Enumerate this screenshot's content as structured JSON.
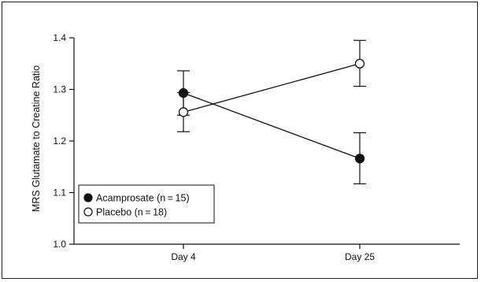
{
  "chart_data": {
    "type": "line",
    "ylabel": "MRS Glutamate to Creatine Ratio",
    "xlabel": "",
    "categories": [
      "Day 4",
      "Day 25"
    ],
    "ylim": [
      1.0,
      1.4
    ],
    "yticks": [
      "1.0",
      "1.1",
      "1.2",
      "1.3",
      "1.4"
    ],
    "grid": false,
    "legend_position": "bottom-left",
    "series": [
      {
        "name": "Acamprosate (n = 15)",
        "marker": "filled-circle",
        "values": [
          1.293,
          1.166
        ],
        "error": [
          [
            1.25,
            1.336
          ],
          [
            1.117,
            1.216
          ]
        ]
      },
      {
        "name": "Placebo (n = 18)",
        "marker": "open-circle",
        "values": [
          1.256,
          1.35
        ],
        "error": [
          [
            1.218,
            1.294
          ],
          [
            1.306,
            1.395
          ]
        ]
      }
    ],
    "colors": {
      "line": "#111111",
      "filled_marker": "#111111",
      "open_marker_fill": "#ffffff"
    }
  }
}
